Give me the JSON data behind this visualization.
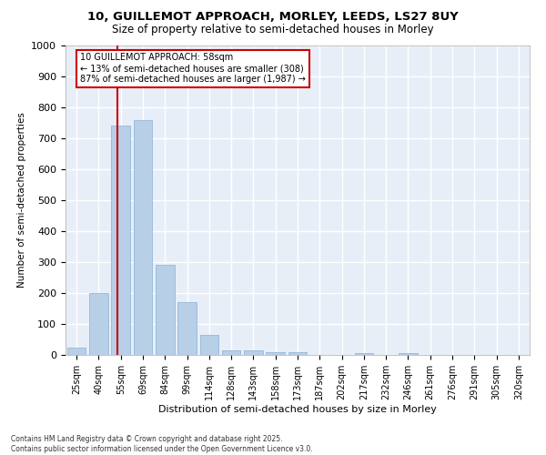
{
  "title_line1": "10, GUILLEMOT APPROACH, MORLEY, LEEDS, LS27 8UY",
  "title_line2": "Size of property relative to semi-detached houses in Morley",
  "xlabel": "Distribution of semi-detached houses by size in Morley",
  "ylabel": "Number of semi-detached properties",
  "categories": [
    "25sqm",
    "40sqm",
    "55sqm",
    "69sqm",
    "84sqm",
    "99sqm",
    "114sqm",
    "128sqm",
    "143sqm",
    "158sqm",
    "173sqm",
    "187sqm",
    "202sqm",
    "217sqm",
    "232sqm",
    "246sqm",
    "261sqm",
    "276sqm",
    "291sqm",
    "305sqm",
    "320sqm"
  ],
  "values": [
    25,
    200,
    740,
    760,
    290,
    170,
    65,
    15,
    15,
    8,
    10,
    0,
    0,
    5,
    0,
    5,
    0,
    0,
    0,
    0,
    0
  ],
  "bar_color": "#b8cfe8",
  "bar_edge_color": "#8aafd4",
  "annotation_title": "10 GUILLEMOT APPROACH: 58sqm",
  "annotation_line2": "← 13% of semi-detached houses are smaller (308)",
  "annotation_line3": "87% of semi-detached houses are larger (1,987) →",
  "annotation_box_color": "#cc0000",
  "ylim": [
    0,
    1000
  ],
  "yticks": [
    0,
    100,
    200,
    300,
    400,
    500,
    600,
    700,
    800,
    900,
    1000
  ],
  "bg_color": "#e8eef8",
  "grid_color": "#ffffff",
  "footer_line1": "Contains HM Land Registry data © Crown copyright and database right 2025.",
  "footer_line2": "Contains public sector information licensed under the Open Government Licence v3.0."
}
